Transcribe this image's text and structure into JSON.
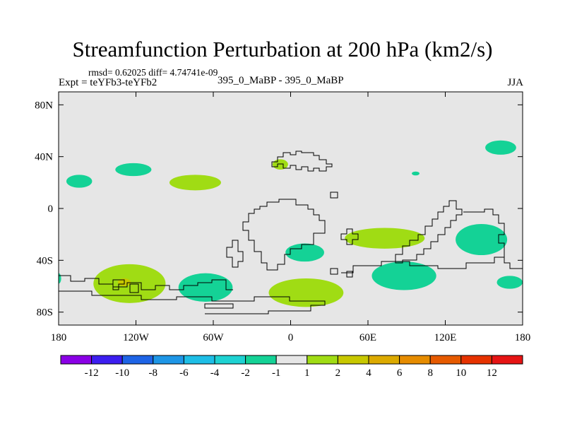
{
  "title": "Streamfunction Perturbation at 200 hPa (km2/s)",
  "stats_line": "rmsd= 0.62025 diff= 4.74741e-09",
  "expt_label": "Expt = teYFb3-teYFb2",
  "case_label": "395_0_MaBP - 395_0_MaBP",
  "season": "JJA",
  "chart_data": {
    "type": "contour-map",
    "title": "Streamfunction Perturbation at 200 hPa (km2/s)",
    "xlim": [
      -180,
      180
    ],
    "ylim": [
      -90,
      90
    ],
    "x_ticks": [
      {
        "value": -180,
        "label": "180"
      },
      {
        "value": -120,
        "label": "120W"
      },
      {
        "value": -60,
        "label": "60W"
      },
      {
        "value": 0,
        "label": "0"
      },
      {
        "value": 60,
        "label": "60E"
      },
      {
        "value": 120,
        "label": "120E"
      },
      {
        "value": 180,
        "label": "180"
      }
    ],
    "y_ticks": [
      {
        "value": 80,
        "label": "80N"
      },
      {
        "value": 40,
        "label": "40N"
      },
      {
        "value": 0,
        "label": "0"
      },
      {
        "value": -40,
        "label": "40S"
      },
      {
        "value": -80,
        "label": "80S"
      }
    ],
    "background_color": "#e6e6e6",
    "colorbar": {
      "colors": [
        "#8a00e6",
        "#3c1ef0",
        "#1e64e6",
        "#1e96e6",
        "#1ebee6",
        "#1ed2d2",
        "#14d296",
        "#e6e6e6",
        "#a0dc14",
        "#c8c800",
        "#dcaa00",
        "#e68c00",
        "#e65a00",
        "#e63200",
        "#e61414"
      ],
      "labels": [
        "-12",
        "-10",
        "-8",
        "-6",
        "-4",
        "-2",
        "-1",
        "1",
        "2",
        "4",
        "6",
        "8",
        "10",
        "12"
      ]
    },
    "anomaly_regions": [
      {
        "lon": -164,
        "lat": 21,
        "rx": 10,
        "ry": 5,
        "value": -1,
        "color": "#14d296"
      },
      {
        "lon": -122,
        "lat": 30,
        "rx": 14,
        "ry": 5,
        "value": -1,
        "color": "#14d296"
      },
      {
        "lon": -74,
        "lat": 20,
        "rx": 20,
        "ry": 6,
        "value": 1,
        "color": "#a0dc14"
      },
      {
        "lon": -8,
        "lat": 34,
        "rx": 6,
        "ry": 4,
        "value": 1,
        "color": "#a0dc14"
      },
      {
        "lon": 97,
        "lat": 27,
        "rx": 3,
        "ry": 1.5,
        "value": -1,
        "color": "#14d296"
      },
      {
        "lon": 163,
        "lat": 47,
        "rx": 12,
        "ry": 5.5,
        "value": -1,
        "color": "#14d296"
      },
      {
        "lon": 148,
        "lat": -24,
        "rx": 20,
        "ry": 12,
        "value": -1,
        "color": "#14d296"
      },
      {
        "lon": 73,
        "lat": -23,
        "rx": 31,
        "ry": 8,
        "value": 1,
        "color": "#a0dc14"
      },
      {
        "lon": 11,
        "lat": -34,
        "rx": 15,
        "ry": 7,
        "value": -1,
        "color": "#14d296"
      },
      {
        "lon": 88,
        "lat": -52,
        "rx": 25,
        "ry": 11,
        "value": -1,
        "color": "#14d296"
      },
      {
        "lon": 170,
        "lat": -57,
        "rx": 10,
        "ry": 5,
        "value": -1,
        "color": "#14d296"
      },
      {
        "lon": 12,
        "lat": -65,
        "rx": 29,
        "ry": 11,
        "value": 1,
        "color": "#a0dc14"
      },
      {
        "lon": -125,
        "lat": -58,
        "rx": 28,
        "ry": 15,
        "value": 1,
        "color": "#a0dc14"
      },
      {
        "lon": -129,
        "lat": -57,
        "rx": 5,
        "ry": 3,
        "value": 4,
        "color": "#c8c800"
      },
      {
        "lon": -66,
        "lat": -61,
        "rx": 21,
        "ry": 11,
        "value": -1,
        "color": "#14d296"
      },
      {
        "lon": -180,
        "lat": -54,
        "rx": 2,
        "ry": 4,
        "value": -1,
        "color": "#14d296"
      }
    ]
  }
}
